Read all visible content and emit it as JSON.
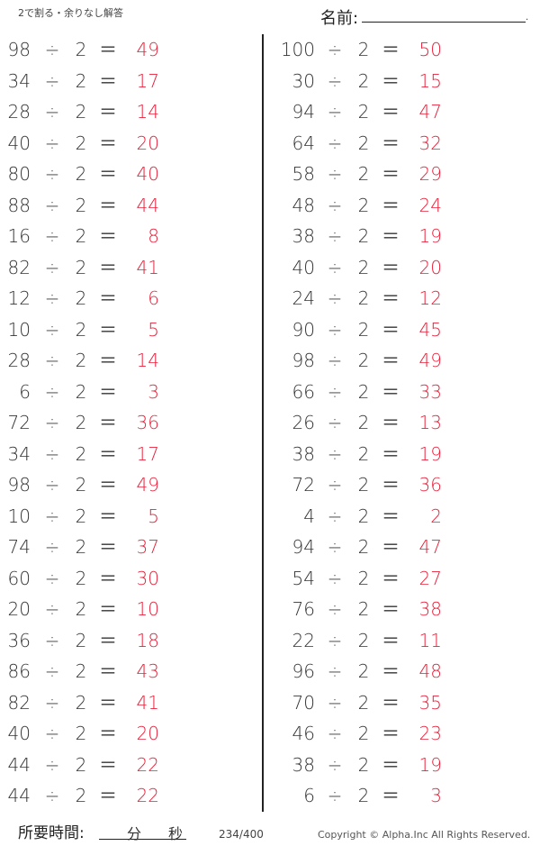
{
  "header": {
    "title": "2で割る・余りなし解答",
    "name_label": "名前:",
    "name_end": "."
  },
  "colors": {
    "answer": "#e8203a",
    "text": "#333333"
  },
  "operator": "÷",
  "equals": "＝",
  "divisor": "2",
  "left": [
    {
      "dividend": "98",
      "answer": "49"
    },
    {
      "dividend": "34",
      "answer": "17"
    },
    {
      "dividend": "28",
      "answer": "14"
    },
    {
      "dividend": "40",
      "answer": "20"
    },
    {
      "dividend": "80",
      "answer": "40"
    },
    {
      "dividend": "88",
      "answer": "44"
    },
    {
      "dividend": "16",
      "answer": "8"
    },
    {
      "dividend": "82",
      "answer": "41"
    },
    {
      "dividend": "12",
      "answer": "6"
    },
    {
      "dividend": "10",
      "answer": "5"
    },
    {
      "dividend": "28",
      "answer": "14"
    },
    {
      "dividend": "6",
      "answer": "3"
    },
    {
      "dividend": "72",
      "answer": "36"
    },
    {
      "dividend": "34",
      "answer": "17"
    },
    {
      "dividend": "98",
      "answer": "49"
    },
    {
      "dividend": "10",
      "answer": "5"
    },
    {
      "dividend": "74",
      "answer": "37"
    },
    {
      "dividend": "60",
      "answer": "30"
    },
    {
      "dividend": "20",
      "answer": "10"
    },
    {
      "dividend": "36",
      "answer": "18"
    },
    {
      "dividend": "86",
      "answer": "43"
    },
    {
      "dividend": "82",
      "answer": "41"
    },
    {
      "dividend": "40",
      "answer": "20"
    },
    {
      "dividend": "44",
      "answer": "22"
    },
    {
      "dividend": "44",
      "answer": "22"
    }
  ],
  "right": [
    {
      "dividend": "100",
      "answer": "50"
    },
    {
      "dividend": "30",
      "answer": "15"
    },
    {
      "dividend": "94",
      "answer": "47"
    },
    {
      "dividend": "64",
      "answer": "32"
    },
    {
      "dividend": "58",
      "answer": "29"
    },
    {
      "dividend": "48",
      "answer": "24"
    },
    {
      "dividend": "38",
      "answer": "19"
    },
    {
      "dividend": "40",
      "answer": "20"
    },
    {
      "dividend": "24",
      "answer": "12"
    },
    {
      "dividend": "90",
      "answer": "45"
    },
    {
      "dividend": "98",
      "answer": "49"
    },
    {
      "dividend": "66",
      "answer": "33"
    },
    {
      "dividend": "26",
      "answer": "13"
    },
    {
      "dividend": "38",
      "answer": "19"
    },
    {
      "dividend": "72",
      "answer": "36"
    },
    {
      "dividend": "4",
      "answer": "2"
    },
    {
      "dividend": "94",
      "answer": "47"
    },
    {
      "dividend": "54",
      "answer": "27"
    },
    {
      "dividend": "76",
      "answer": "38"
    },
    {
      "dividend": "22",
      "answer": "11"
    },
    {
      "dividend": "96",
      "answer": "48"
    },
    {
      "dividend": "70",
      "answer": "35"
    },
    {
      "dividend": "46",
      "answer": "23"
    },
    {
      "dividend": "38",
      "answer": "19"
    },
    {
      "dividend": "6",
      "answer": "3"
    }
  ],
  "footer": {
    "time_label": "所要時間:",
    "minutes": "分",
    "seconds": "秒",
    "page": "234/400",
    "copyright": "Copyright ©  Alpha.Inc All Rights Reserved."
  }
}
